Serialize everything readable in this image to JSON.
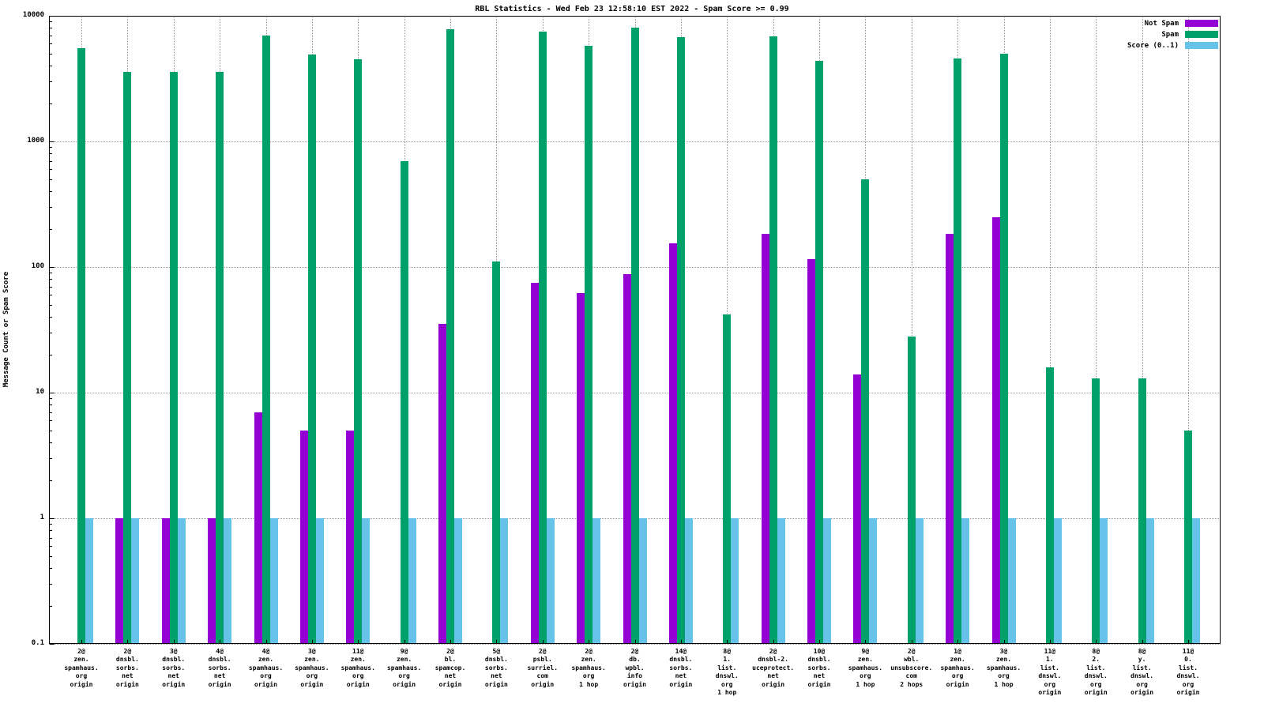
{
  "chart_data": {
    "type": "bar",
    "title": "RBL Statistics - Wed Feb 23 12:58:10 EST 2022 - Spam Score >= 0.99",
    "ylabel": "Message Count or Spam Score",
    "y_scale": "log",
    "ylim": [
      0.1,
      10000
    ],
    "grid": true,
    "legend_position": "top-right",
    "y_ticks": [
      {
        "value": 0.1,
        "label": "0.1"
      },
      {
        "value": 1,
        "label": "1"
      },
      {
        "value": 10,
        "label": "10"
      },
      {
        "value": 100,
        "label": "100"
      },
      {
        "value": 1000,
        "label": "1000"
      },
      {
        "value": 10000,
        "label": "10000"
      }
    ],
    "categories": [
      [
        "2@",
        "zen.",
        "spamhaus.",
        "org",
        "origin"
      ],
      [
        "2@",
        "dnsbl.",
        "sorbs.",
        "net",
        "origin"
      ],
      [
        "3@",
        "dnsbl.",
        "sorbs.",
        "net",
        "origin"
      ],
      [
        "4@",
        "dnsbl.",
        "sorbs.",
        "net",
        "origin"
      ],
      [
        "4@",
        "zen.",
        "spamhaus.",
        "org",
        "origin"
      ],
      [
        "3@",
        "zen.",
        "spamhaus.",
        "org",
        "origin"
      ],
      [
        "11@",
        "zen.",
        "spamhaus.",
        "org",
        "origin"
      ],
      [
        "9@",
        "zen.",
        "spamhaus.",
        "org",
        "origin"
      ],
      [
        "2@",
        "bl.",
        "spamcop.",
        "net",
        "origin"
      ],
      [
        "5@",
        "dnsbl.",
        "sorbs.",
        "net",
        "origin"
      ],
      [
        "2@",
        "psbl.",
        "surriel.",
        "com",
        "origin"
      ],
      [
        "2@",
        "zen.",
        "spamhaus.",
        "org",
        "1 hop"
      ],
      [
        "2@",
        "db.",
        "wpbl.",
        "info",
        "origin"
      ],
      [
        "14@",
        "dnsbl.",
        "sorbs.",
        "net",
        "origin"
      ],
      [
        "8@",
        "1.",
        "list.",
        "dnswl.",
        "org",
        "1 hop"
      ],
      [
        "2@",
        "dnsbl-2.",
        "uceprotect.",
        "net",
        "origin"
      ],
      [
        "10@",
        "dnsbl.",
        "sorbs.",
        "net",
        "origin"
      ],
      [
        "9@",
        "zen.",
        "spamhaus.",
        "org",
        "1 hop"
      ],
      [
        "2@",
        "wbl.",
        "unsubscore.",
        "com",
        "2 hops"
      ],
      [
        "1@",
        "zen.",
        "spamhaus.",
        "org",
        "origin"
      ],
      [
        "3@",
        "zen.",
        "spamhaus.",
        "org",
        "1 hop"
      ],
      [
        "11@",
        "1.",
        "list.",
        "dnswl.",
        "org",
        "origin"
      ],
      [
        "8@",
        "2.",
        "list.",
        "dnswl.",
        "org",
        "origin"
      ],
      [
        "8@",
        "y.",
        "list.",
        "dnswl.",
        "org",
        "origin"
      ],
      [
        "11@",
        "0.",
        "list.",
        "dnswl.",
        "org",
        "origin"
      ]
    ],
    "series": [
      {
        "key": "not-spam",
        "name": "Not Spam",
        "color": "#9400d3",
        "values": [
          null,
          1,
          1,
          1,
          7,
          5,
          5,
          null,
          35,
          null,
          75,
          62,
          88,
          155,
          null,
          185,
          115,
          14,
          null,
          185,
          250,
          null,
          null,
          null,
          null
        ]
      },
      {
        "key": "spam",
        "name": "Spam",
        "color": "#00a06a",
        "values": [
          5500,
          3600,
          3600,
          3600,
          7000,
          4900,
          4500,
          700,
          7800,
          110,
          7500,
          5800,
          8000,
          6800,
          42,
          6900,
          4400,
          500,
          28,
          4600,
          5000,
          16,
          13,
          13,
          5
        ]
      },
      {
        "key": "score",
        "name": "Score (0..1)",
        "color": "#66c2e8",
        "values": [
          1,
          1,
          1,
          1,
          1,
          1,
          1,
          1,
          1,
          1,
          1,
          1,
          1,
          1,
          1,
          1,
          1,
          1,
          1,
          1,
          1,
          1,
          1,
          1,
          1
        ]
      }
    ]
  }
}
